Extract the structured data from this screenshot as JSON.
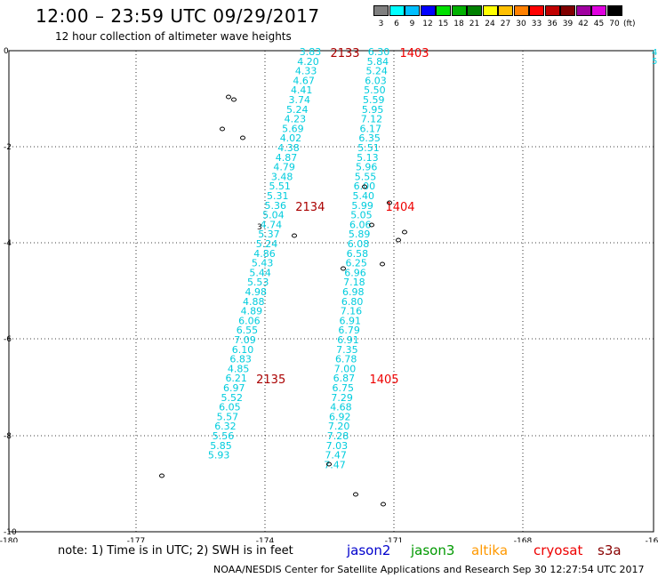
{
  "header": {
    "title": "12:00 – 23:59 UTC 09/29/2017",
    "subtitle": "12 hour collection of altimeter wave heights"
  },
  "legend": {
    "unit": "(ft)",
    "bins": [
      {
        "label": "3",
        "color": "#808080"
      },
      {
        "label": "6",
        "color": "#00ffff"
      },
      {
        "label": "9",
        "color": "#00bfff"
      },
      {
        "label": "12",
        "color": "#0000ff"
      },
      {
        "label": "15",
        "color": "#00e000"
      },
      {
        "label": "18",
        "color": "#00b000"
      },
      {
        "label": "21",
        "color": "#008000"
      },
      {
        "label": "24",
        "color": "#ffff00"
      },
      {
        "label": "27",
        "color": "#ffc000"
      },
      {
        "label": "30",
        "color": "#ff8000"
      },
      {
        "label": "33",
        "color": "#ff0000"
      },
      {
        "label": "36",
        "color": "#c00000"
      },
      {
        "label": "39",
        "color": "#800000"
      },
      {
        "label": "42",
        "color": "#a000a0"
      },
      {
        "label": "45",
        "color": "#e000e0"
      },
      {
        "label": "70",
        "color": "#000000"
      }
    ]
  },
  "map": {
    "x_ticks": [
      "-180",
      "-177",
      "-174",
      "-171",
      "-168",
      "-16"
    ],
    "y_ticks": [
      "0",
      "-2",
      "-4",
      "-6",
      "-8",
      "-10"
    ],
    "track_color": "#00ccdd",
    "time_color": "#aa0000",
    "track_west": {
      "values": [
        "3.83",
        "4.20",
        "4.33",
        "4.67",
        "4.41",
        "3.74",
        "5.24",
        "4.23",
        "5.69",
        "4.02",
        "4.38",
        "4.87",
        "4.79",
        "3.48",
        "5.51",
        "5.31",
        "5.36",
        "5.04",
        "4.74",
        "5.37",
        "5.24",
        "4.86",
        "5.43",
        "5.44",
        "5.53",
        "4.98",
        "4.88",
        "4.89",
        "6.06",
        "6.55",
        "7.09",
        "6.10",
        "6.83",
        "4.85",
        "6.21",
        "6.97",
        "5.52",
        "6.05",
        "5.57",
        "6.32",
        "5.56",
        "5.85",
        "5.93"
      ],
      "times": [
        {
          "label": "2133",
          "index": 0
        },
        {
          "label": "2134",
          "index": 16
        },
        {
          "label": "2135",
          "index": 34
        }
      ]
    },
    "track_east": {
      "values": [
        "6.30",
        "5.84",
        "5.24",
        "6.03",
        "5.50",
        "5.59",
        "5.95",
        "7.12",
        "6.17",
        "6.35",
        "5.51",
        "5.13",
        "5.96",
        "5.55",
        "6.00",
        "5.40",
        "5.99",
        "5.05",
        "6.06",
        "5.89",
        "6.08",
        "6.58",
        "6.25",
        "6.96",
        "7.18",
        "6.98",
        "6.80",
        "7.16",
        "6.91",
        "6.79",
        "6.91",
        "7.35",
        "6.78",
        "7.00",
        "6.87",
        "6.75",
        "7.29",
        "4.68",
        "6.92",
        "7.20",
        "7.28",
        "7.03",
        "7.47",
        "7.47"
      ],
      "times": [
        {
          "label": "1403",
          "index": 0
        },
        {
          "label": "1404",
          "index": 16
        },
        {
          "label": "1405",
          "index": 34
        }
      ]
    },
    "edge_marks": [
      "4",
      "5"
    ],
    "marker_3": "3"
  },
  "footer": {
    "note": "note:  1) Time is in UTC;  2) SWH is in feet",
    "satellites": [
      {
        "name": "jason2",
        "color": "#0000cc"
      },
      {
        "name": "jason3",
        "color": "#009900"
      },
      {
        "name": "altika",
        "color": "#ff9900"
      },
      {
        "name": "cryosat",
        "color": "#ee0000"
      },
      {
        "name": "s3a",
        "color": "#880000"
      }
    ],
    "credit": "NOAA/NESDIS Center for Satellite Applications and Research    Sep 30 12:27:54 UTC 2017"
  }
}
